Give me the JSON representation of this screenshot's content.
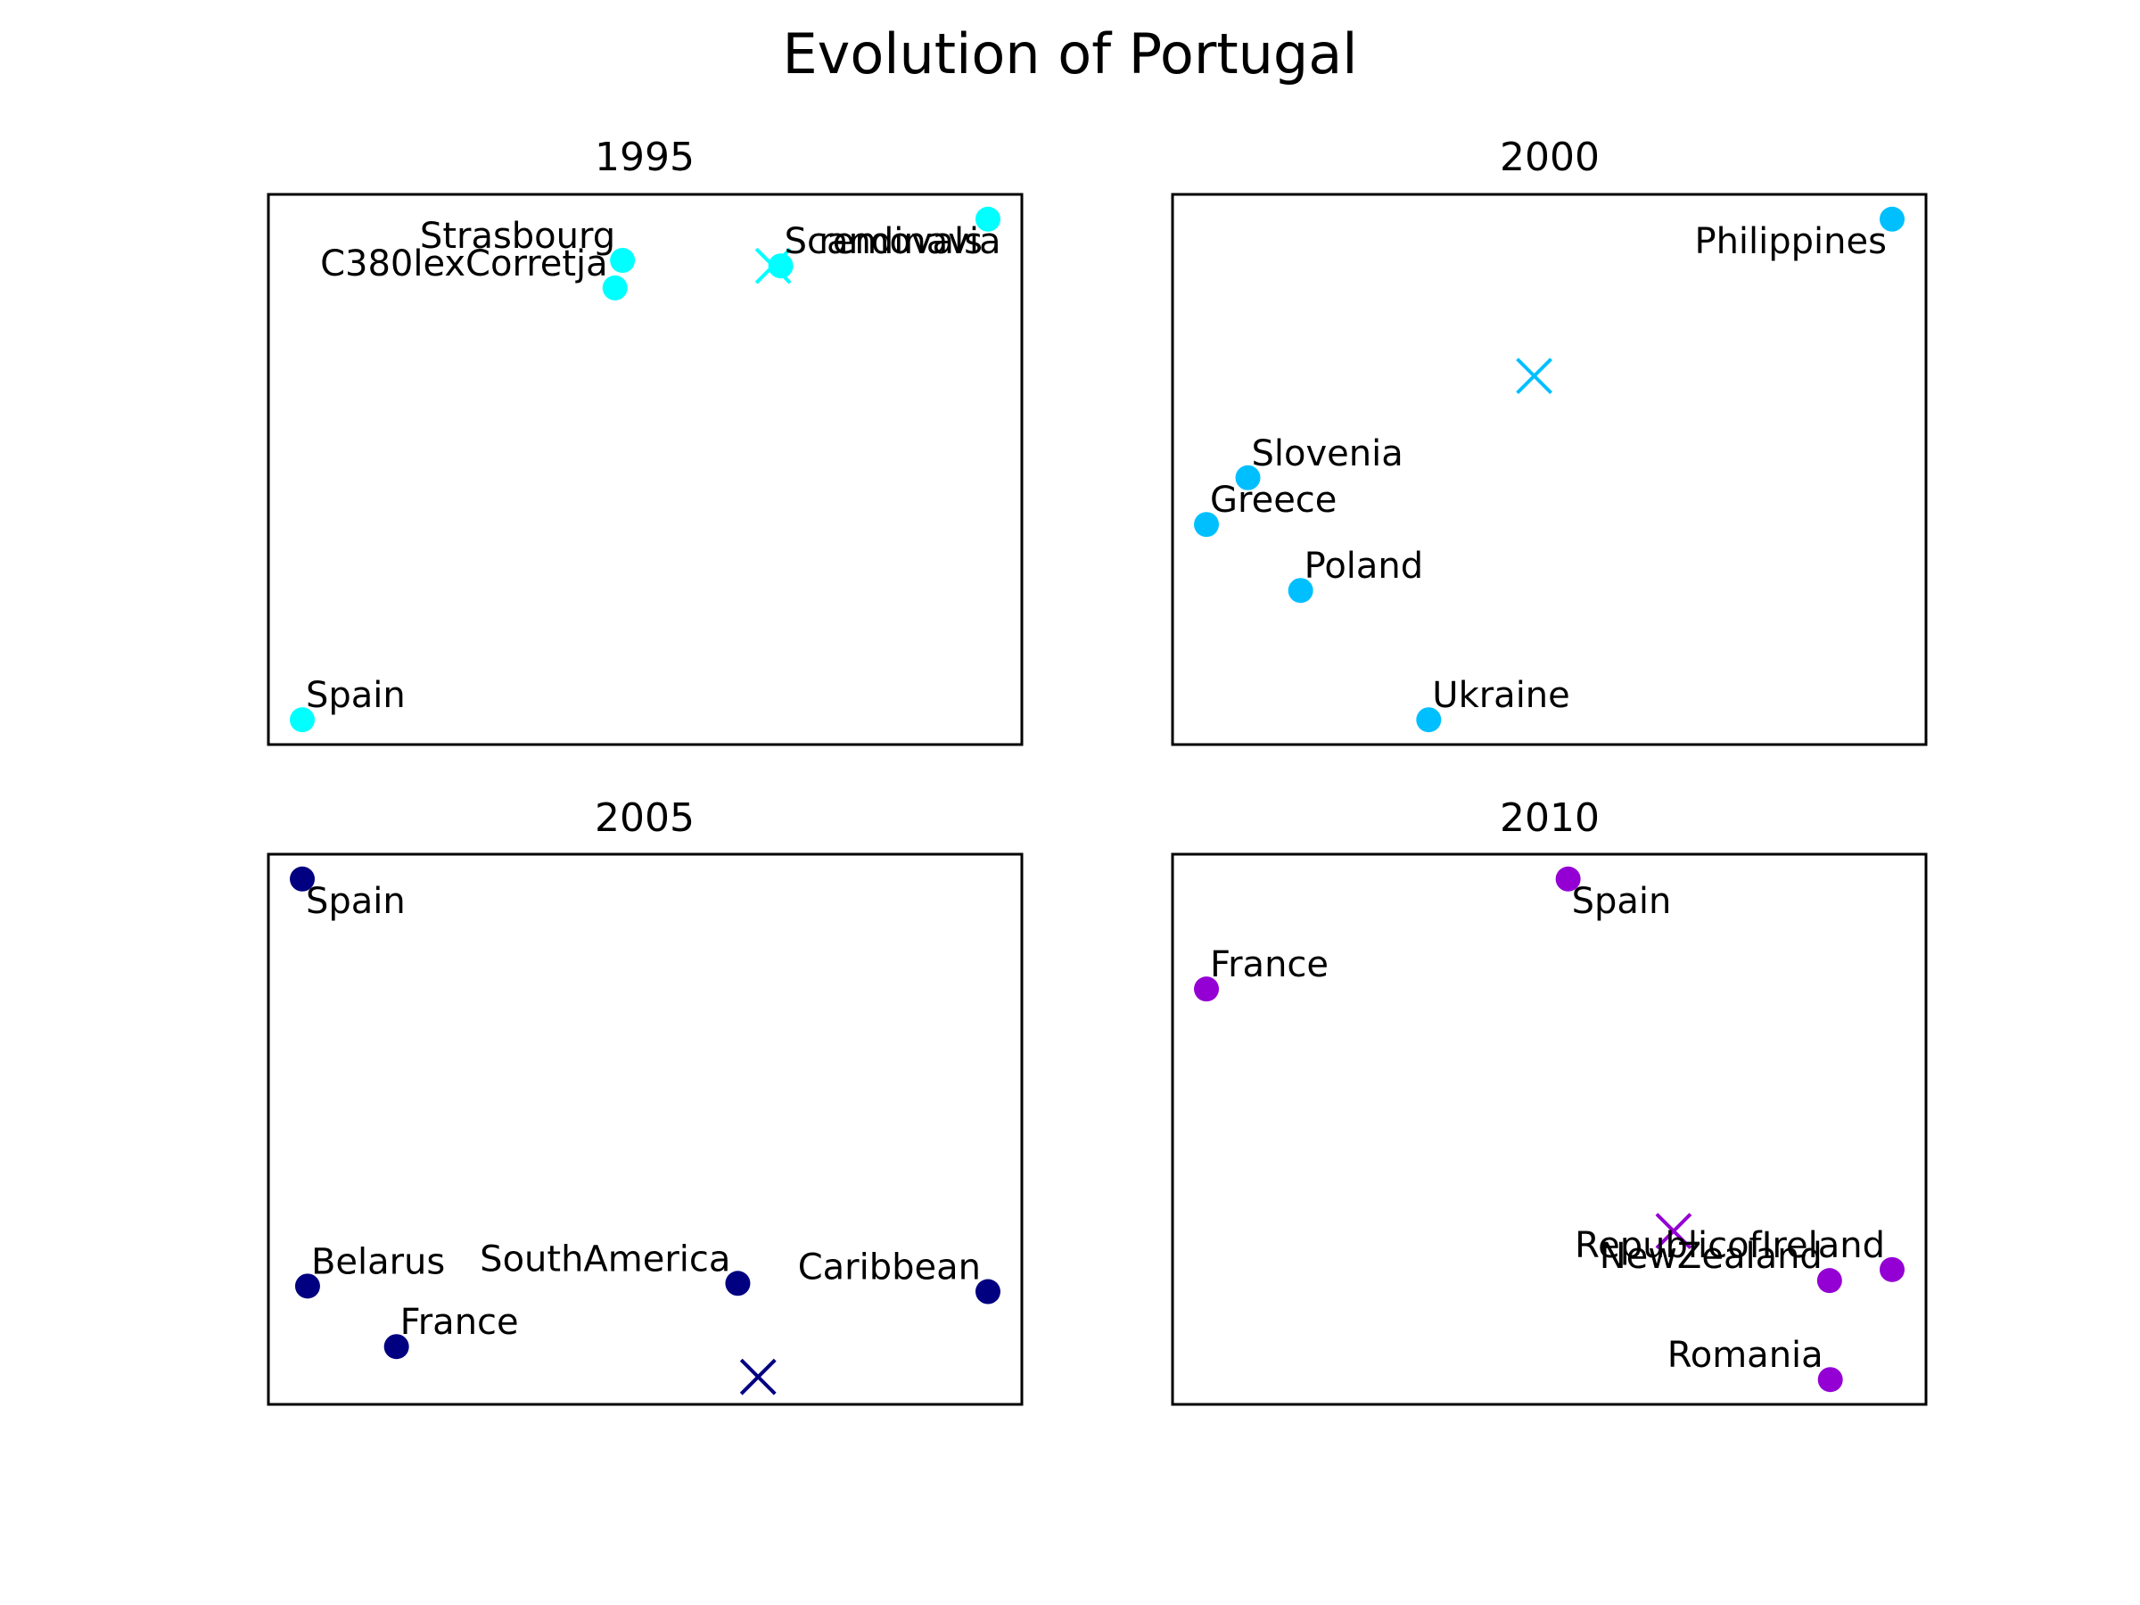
{
  "figure": {
    "title": "Evolution of Portugal"
  },
  "chart_data": [
    {
      "type": "scatter",
      "title": "1995",
      "color": "#00FFFF",
      "xlim": [
        0,
        1
      ],
      "ylim": [
        0,
        1
      ],
      "axes_visible": false,
      "points": [
        {
          "label": "Strasbourg",
          "x": 0.47,
          "y": 0.88,
          "label_side": "left"
        },
        {
          "label": "C380lexCorretja",
          "x": 0.46,
          "y": 0.83,
          "label_side": "left"
        },
        {
          "label": "Scandinavia",
          "x": 0.68,
          "y": 0.87,
          "label_side": "right"
        },
        {
          "label": "removals",
          "x": 0.955,
          "y": 0.955,
          "label_side": "below-left"
        },
        {
          "label": "Spain",
          "x": 0.045,
          "y": 0.045,
          "label_side": "right"
        }
      ],
      "centroid": {
        "x": 0.67,
        "y": 0.87
      }
    },
    {
      "type": "scatter",
      "title": "2000",
      "color": "#00BFFF",
      "xlim": [
        0,
        1
      ],
      "ylim": [
        0,
        1
      ],
      "axes_visible": false,
      "points": [
        {
          "label": "Philippines",
          "x": 0.955,
          "y": 0.955,
          "label_side": "below-left"
        },
        {
          "label": "Slovenia",
          "x": 0.1,
          "y": 0.485,
          "label_side": "right"
        },
        {
          "label": "Greece",
          "x": 0.045,
          "y": 0.4,
          "label_side": "right"
        },
        {
          "label": "Poland",
          "x": 0.17,
          "y": 0.28,
          "label_side": "right"
        },
        {
          "label": "Ukraine",
          "x": 0.34,
          "y": 0.045,
          "label_side": "right"
        }
      ],
      "centroid": {
        "x": 0.48,
        "y": 0.67
      }
    },
    {
      "type": "scatter",
      "title": "2005",
      "color": "#000080",
      "xlim": [
        0,
        1
      ],
      "ylim": [
        0,
        1
      ],
      "axes_visible": false,
      "points": [
        {
          "label": "Spain",
          "x": 0.045,
          "y": 0.955,
          "label_side": "below-right"
        },
        {
          "label": "Belarus",
          "x": 0.052,
          "y": 0.215,
          "label_side": "right"
        },
        {
          "label": "SouthAmerica",
          "x": 0.623,
          "y": 0.22,
          "label_side": "left"
        },
        {
          "label": "Caribbean",
          "x": 0.955,
          "y": 0.205,
          "label_side": "left"
        },
        {
          "label": "France",
          "x": 0.17,
          "y": 0.105,
          "label_side": "right"
        }
      ],
      "centroid": {
        "x": 0.65,
        "y": 0.05
      }
    },
    {
      "type": "scatter",
      "title": "2010",
      "color": "#9400D3",
      "xlim": [
        0,
        1
      ],
      "ylim": [
        0,
        1
      ],
      "axes_visible": false,
      "points": [
        {
          "label": "Spain",
          "x": 0.525,
          "y": 0.955,
          "label_side": "below-right"
        },
        {
          "label": "France",
          "x": 0.045,
          "y": 0.755,
          "label_side": "right"
        },
        {
          "label": "RepublicofIreland",
          "x": 0.955,
          "y": 0.245,
          "label_side": "left"
        },
        {
          "label": "NewZealand",
          "x": 0.872,
          "y": 0.225,
          "label_side": "left"
        },
        {
          "label": "Romania",
          "x": 0.873,
          "y": 0.045,
          "label_side": "left"
        }
      ],
      "centroid": {
        "x": 0.665,
        "y": 0.315
      }
    }
  ]
}
